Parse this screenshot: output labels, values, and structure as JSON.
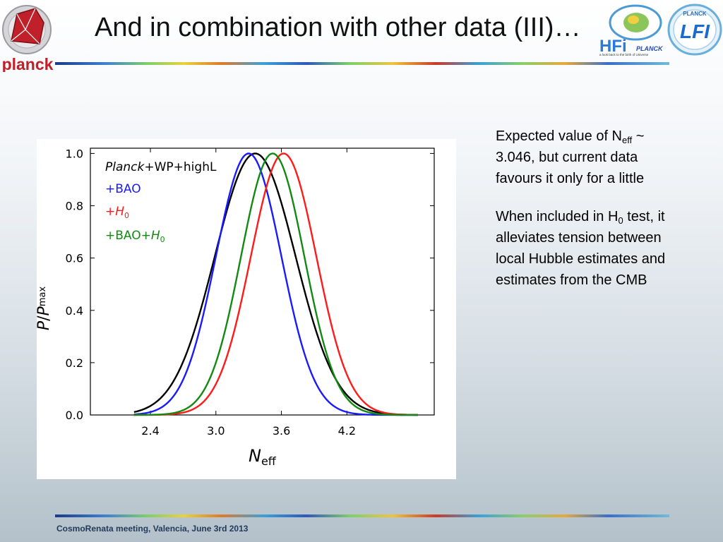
{
  "slide": {
    "title": "And in combination with other data (III)…",
    "footer": "CosmoRenata meeting, Valencia, June 3rd 2013",
    "logos": {
      "planck_text": "planck",
      "hfi_text": "HFi",
      "hfi_brand": "PLANCK",
      "hfi_tagline": "a look back to the birth of Universe",
      "lfi_brand": "PLANCK",
      "lfi_text": "LFI"
    }
  },
  "notes": {
    "p1_a": "Expected value of N",
    "p1_sub": "eff",
    "p1_b": " ~ 3.046, but current data favours it only for a little",
    "p2_a": "When included in H",
    "p2_sub": "0",
    "p2_b": " test, it alleviates tension between local Hubble estimates and estimates from the CMB"
  },
  "colors": {
    "black_series": "#000000",
    "blue_series": "#1a1aff",
    "red_series": "#ff1a1a",
    "green_series": "#128a12",
    "title_text": "#111111",
    "planck_red": "#c0202a"
  },
  "chart_data": {
    "type": "line",
    "xlabel_main": "N",
    "xlabel_sub": "eff",
    "ylabel_a": "P",
    "ylabel_sep": "/",
    "ylabel_b": "P",
    "ylabel_sub": "max",
    "xlim": [
      1.85,
      5.0
    ],
    "ylim": [
      0.0,
      1.02
    ],
    "xticks": [
      2.4,
      3.0,
      3.6,
      4.2
    ],
    "xtick_labels": [
      "2.4",
      "3.0",
      "3.6",
      "4.2"
    ],
    "yticks": [
      0.0,
      0.2,
      0.4,
      0.6,
      0.8,
      1.0
    ],
    "ytick_labels": [
      "0.0",
      "0.2",
      "0.4",
      "0.6",
      "0.8",
      "1.0"
    ],
    "legend_position": "top-left",
    "series": [
      {
        "legend_prefix": "Planck",
        "legend_suffix": "+WP+highL",
        "color": "#000000",
        "peak": 3.36,
        "width": 0.37
      },
      {
        "legend_prefix": "",
        "legend_suffix": "+BAO",
        "color": "#1a1aff",
        "peak": 3.3,
        "width": 0.3
      },
      {
        "legend_prefix": "+",
        "legend_suffix": "H",
        "legend_sub": "0",
        "color": "#ff1a1a",
        "peak": 3.62,
        "width": 0.3
      },
      {
        "legend_prefix": "+BAO+",
        "legend_suffix": "H",
        "legend_sub": "0",
        "color": "#128a12",
        "peak": 3.52,
        "width": 0.29
      }
    ]
  }
}
